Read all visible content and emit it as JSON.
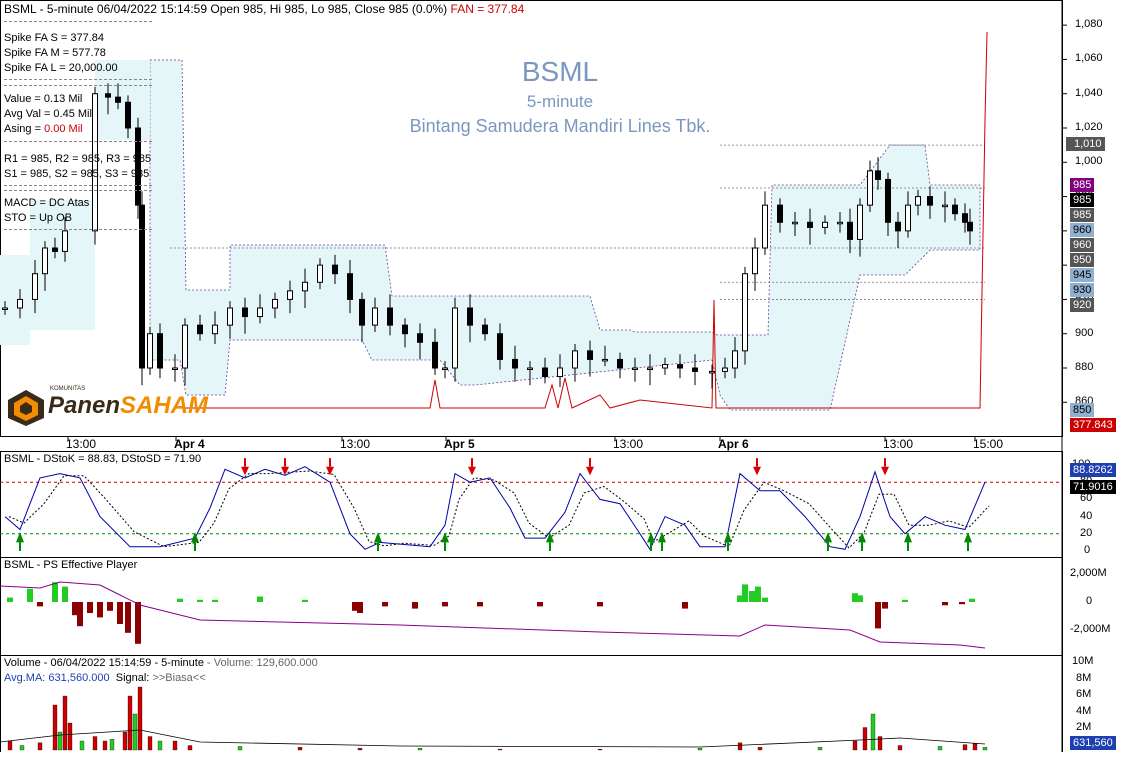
{
  "header": {
    "main": "BSML - 5-minute 06/04/2022 15:14:59 Open 985, Hi 985, Lo 985, Close 985 (0.0%)",
    "fan": "FAN = 377.84"
  },
  "watermark": {
    "ticker": "BSML",
    "interval": "5-minute",
    "company": "Bintang Samudera Mandiri Lines Tbk."
  },
  "info_panel": {
    "spike_s": "Spike FA S =  377.84",
    "spike_m": "Spike FA M =  577.78",
    "spike_l": "Spike FA L =  20,000.00",
    "value": "Value = 0.13 Mil",
    "avg_val": "Avg Val = 0.45 Mil",
    "asing_label": "Asing = ",
    "asing_value": "0.00 Mil",
    "r_levels": "R1 = 985, R2 = 985, R3 = 985",
    "s_levels": "S1 = 985, S2 = 985, S3 = 985",
    "macd": "MACD =  DC Atas",
    "sto": "STO  =  Up OB"
  },
  "logo": {
    "small": "KOMUNITAS",
    "part1": "Panen",
    "part2": "SAHAM",
    "colors": {
      "brand_dark": "#3a2a1a",
      "brand_orange": "#f28c00"
    }
  },
  "price_axis": {
    "ticks": [
      "1,080",
      "1,060",
      "1,040",
      "1,020",
      "1,000",
      "980",
      "960",
      "940",
      "920",
      "900",
      "880",
      "860"
    ],
    "tick_values": [
      1080,
      1060,
      1040,
      1020,
      1000,
      980,
      960,
      940,
      920,
      900,
      880,
      860
    ],
    "tags": [
      {
        "text": "1,010",
        "value": 1010,
        "bg": "#555555",
        "fg": "#ffffff"
      },
      {
        "text": "985",
        "value": 985,
        "bg": "#800080",
        "fg": "#ffffff"
      },
      {
        "text": "985",
        "value": 977,
        "bg": "#000000",
        "fg": "#ffffff"
      },
      {
        "text": "985",
        "value": 968,
        "bg": "#555555",
        "fg": "#ffffff"
      },
      {
        "text": "960",
        "value": 959,
        "bg": "#8fb0cf",
        "fg": "#000000"
      },
      {
        "text": "960",
        "value": 950,
        "bg": "#555555",
        "fg": "#ffffff"
      },
      {
        "text": "950",
        "value": 941,
        "bg": "#555555",
        "fg": "#ffffff"
      },
      {
        "text": "945",
        "value": 932,
        "bg": "#8fb0cf",
        "fg": "#000000"
      },
      {
        "text": "930",
        "value": 923,
        "bg": "#8fb0cf",
        "fg": "#000000"
      },
      {
        "text": "920",
        "value": 914,
        "bg": "#555555",
        "fg": "#ffffff"
      },
      {
        "text": "850",
        "value": 850,
        "bg": "#8fb0cf",
        "fg": "#000000"
      },
      {
        "text": "377.843",
        "value": 845,
        "bg": "#cc0000",
        "fg": "#ffffff"
      }
    ]
  },
  "time_axis": [
    "13:00",
    "Apr 4",
    "13:00",
    "Apr 5",
    "13:00",
    "Apr 6",
    "13:00",
    "15:00"
  ],
  "stoch": {
    "title": "BSML - DStoK = 88.83, DStoSD = 71.90",
    "ticks": [
      "100",
      "80",
      "60",
      "40",
      "20",
      "0"
    ],
    "tick_values": [
      100,
      80,
      60,
      40,
      20,
      0
    ],
    "k_tag": "88.8262",
    "d_tag": "71.9016"
  },
  "ps": {
    "title": "BSML - PS Effective Player",
    "ticks": [
      "2,000M",
      "0",
      "-2,000M"
    ],
    "tick_values": [
      2000,
      0,
      -2000
    ]
  },
  "volume": {
    "title_a": "Volume - 06/04/2022 15:14:59 - 5-minute",
    "title_b": " - Volume: 129,600.000",
    "avg": "Avg.MA: 631,560.000",
    "signal_a": "Signal: ",
    "signal_b": ">>Biasa<<",
    "ticks": [
      "10M",
      "8M",
      "6M",
      "4M",
      "2M"
    ],
    "tick_values": [
      10,
      8,
      6,
      4,
      2
    ],
    "tag": "631,560"
  },
  "colors": {
    "up": "#000000",
    "band_fill": "#e4f6f8",
    "fan_line": "#cc0000",
    "stoch_k": "#0000aa",
    "ps_pos": "#22cc22",
    "ps_neg": "#8b0000",
    "ps_line": "#880088"
  },
  "chart_data": {
    "type": "candlestick",
    "title": "BSML",
    "ylim": [
      850,
      1085
    ],
    "price_levels_dashed": [
      1010,
      985,
      950,
      930,
      920
    ],
    "last_close": 985,
    "series_note": "5-minute OHLC, Apr 4 - Apr 6 2022",
    "stochastic": {
      "DStoK": 88.83,
      "DStoSD": 71.9,
      "levels": [
        80,
        20
      ]
    },
    "volume_avg_ma": 631560,
    "last_volume": 129600
  }
}
